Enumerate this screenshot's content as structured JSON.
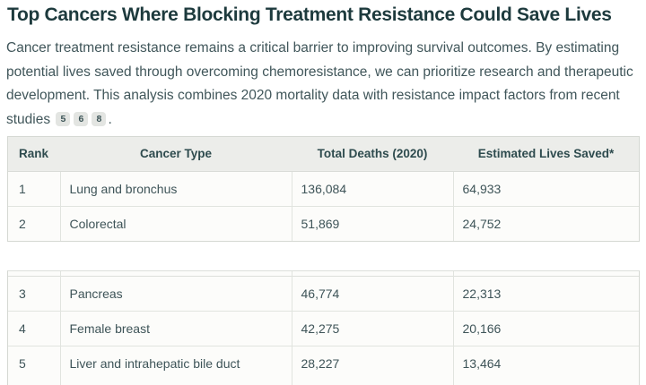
{
  "page": {
    "title": "Top Cancers Where Blocking Treatment Resistance Could Save Lives",
    "intro": {
      "text": "Cancer treatment resistance remains a critical barrier to improving survival outcomes. By estimating potential lives saved through overcoming chemoresistance, we can prioritize research and therapeutic development. This analysis combines 2020 mortality data with resistance impact factors from recent studies",
      "citations": [
        "5",
        "6",
        "8"
      ],
      "suffix": "."
    },
    "colors": {
      "title_text": "#1d3a3d",
      "body_text": "#40565a",
      "table_header_bg": "#ecedea",
      "table_row_bg": "#fcfcfa",
      "table_border": "#d5d8d3",
      "citation_badge_bg": "#e3e5e2"
    }
  },
  "table": {
    "columns": [
      "Rank",
      "Cancer Type",
      "Total Deaths (2020)",
      "Estimated Lives Saved*"
    ],
    "rows": [
      {
        "rank": "1",
        "cancer_type": "Lung and bronchus",
        "total_deaths": "136,084",
        "lives_saved": "64,933"
      },
      {
        "rank": "2",
        "cancer_type": "Colorectal",
        "total_deaths": "51,869",
        "lives_saved": "24,752"
      },
      {
        "rank": "3",
        "cancer_type": "Pancreas",
        "total_deaths": "46,774",
        "lives_saved": "22,313"
      },
      {
        "rank": "4",
        "cancer_type": "Female breast",
        "total_deaths": "42,275",
        "lives_saved": "20,166"
      },
      {
        "rank": "5",
        "cancer_type": "Liver and intrahepatic bile duct",
        "total_deaths": "28,227",
        "lives_saved": "13,464"
      }
    ]
  }
}
